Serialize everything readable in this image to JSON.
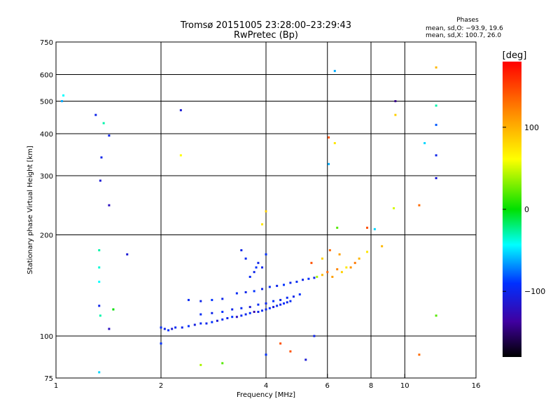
{
  "header": {
    "title": "Tromsø 20151005 23:28:00–23:29:43",
    "subtitle": "RwPretec (Bp)",
    "phases_label": "Phases",
    "phases_o": "mean, sd,O: −93.9, 19.6",
    "phases_x": "mean, sd,X: 100.7, 26.0"
  },
  "colorbar": {
    "unit": "[deg]",
    "ticks": [
      {
        "value": 100,
        "label": "100"
      },
      {
        "value": 0,
        "label": "0"
      },
      {
        "value": -100,
        "label": "−100"
      }
    ],
    "range": [
      -180,
      180
    ]
  },
  "chart_data": {
    "type": "scatter",
    "xlabel": "Frequency [MHz]",
    "ylabel": "Stationary phase Virtual Height [km]",
    "x_scale": "log",
    "y_scale": "log",
    "xlim": [
      1,
      16
    ],
    "ylim": [
      75,
      750
    ],
    "grid": true,
    "x_ticks": [
      {
        "value": 1,
        "label": "1"
      },
      {
        "value": 2,
        "label": "2"
      },
      {
        "value": 4,
        "label": "4"
      },
      {
        "value": 6,
        "label": "6"
      },
      {
        "value": 8,
        "label": "8"
      },
      {
        "value": 10,
        "label": "10"
      },
      {
        "value": 16,
        "label": "16"
      }
    ],
    "x_grid": [
      2,
      4,
      6,
      8,
      10
    ],
    "y_ticks": [
      {
        "value": 75,
        "label": "75"
      },
      {
        "value": 100,
        "label": "100"
      },
      {
        "value": 200,
        "label": "200"
      },
      {
        "value": 300,
        "label": "300"
      },
      {
        "value": 400,
        "label": "400"
      },
      {
        "value": 500,
        "label": "500"
      },
      {
        "value": 600,
        "label": "600"
      },
      {
        "value": 750,
        "label": "750"
      }
    ],
    "y_grid": [
      100,
      200,
      300,
      400,
      500,
      600
    ],
    "series": [
      {
        "points": [
          [
            2.0,
            106,
            -95
          ],
          [
            2.05,
            105,
            -100
          ],
          [
            2.1,
            104,
            -90
          ],
          [
            2.15,
            105,
            -110
          ],
          [
            2.2,
            106,
            -95
          ],
          [
            2.3,
            106,
            -100
          ],
          [
            2.4,
            107,
            -90
          ],
          [
            2.5,
            108,
            -105
          ],
          [
            2.6,
            109,
            -95
          ],
          [
            2.7,
            109,
            -100
          ],
          [
            2.8,
            110,
            -90
          ],
          [
            2.9,
            111,
            -110
          ],
          [
            3.0,
            112,
            -95
          ],
          [
            3.1,
            113,
            -100
          ],
          [
            3.2,
            114,
            -90
          ],
          [
            3.3,
            114,
            -120
          ],
          [
            3.4,
            115,
            -95
          ],
          [
            3.5,
            116,
            -100
          ],
          [
            3.6,
            117,
            -90
          ],
          [
            3.7,
            118,
            -130
          ],
          [
            3.8,
            118,
            -100
          ],
          [
            3.9,
            119,
            -95
          ],
          [
            4.0,
            120,
            -100
          ],
          [
            4.1,
            121,
            -90
          ],
          [
            4.2,
            122,
            -110
          ],
          [
            4.3,
            123,
            -95
          ],
          [
            4.4,
            124,
            -100
          ],
          [
            4.5,
            125,
            -90
          ],
          [
            4.6,
            126,
            -100
          ],
          [
            4.7,
            127,
            -95
          ],
          [
            2.6,
            116,
            -95
          ],
          [
            2.8,
            117,
            -100
          ],
          [
            3.0,
            118,
            -90
          ],
          [
            3.2,
            120,
            -100
          ],
          [
            3.4,
            121,
            -95
          ],
          [
            3.6,
            122,
            -110
          ],
          [
            3.8,
            124,
            -95
          ],
          [
            4.0,
            125,
            -100
          ],
          [
            4.2,
            127,
            -90
          ],
          [
            4.4,
            128,
            -100
          ],
          [
            4.6,
            130,
            -95
          ],
          [
            4.8,
            131,
            -100
          ],
          [
            5.0,
            133,
            -90
          ],
          [
            2.4,
            128,
            -95
          ],
          [
            2.6,
            127,
            -100
          ],
          [
            2.8,
            128,
            -90
          ],
          [
            3.0,
            129,
            -100
          ],
          [
            3.3,
            134,
            -95
          ],
          [
            3.5,
            135,
            -100
          ],
          [
            3.7,
            136,
            -90
          ],
          [
            3.9,
            138,
            -100
          ],
          [
            4.1,
            140,
            -95
          ],
          [
            4.3,
            141,
            -100
          ],
          [
            4.5,
            142,
            -90
          ],
          [
            4.7,
            144,
            -100
          ],
          [
            4.9,
            145,
            -95
          ],
          [
            5.1,
            147,
            -100
          ],
          [
            5.3,
            148,
            -90
          ],
          [
            5.5,
            149,
            -100
          ],
          [
            3.6,
            150,
            -95
          ],
          [
            3.7,
            155,
            -100
          ],
          [
            3.75,
            160,
            -90
          ],
          [
            3.8,
            165,
            -100
          ],
          [
            3.5,
            170,
            -95
          ],
          [
            3.4,
            180,
            -100
          ],
          [
            4.0,
            175,
            -90
          ],
          [
            3.9,
            160,
            -100
          ],
          [
            5.6,
            150,
            60
          ],
          [
            5.8,
            152,
            110
          ],
          [
            6.0,
            155,
            140
          ],
          [
            6.2,
            150,
            120
          ],
          [
            6.4,
            158,
            130
          ],
          [
            6.6,
            155,
            100
          ],
          [
            6.8,
            160,
            90
          ],
          [
            7.0,
            160,
            125
          ],
          [
            7.2,
            165,
            135
          ],
          [
            7.4,
            170,
            110
          ],
          [
            5.4,
            165,
            150
          ],
          [
            5.8,
            170,
            100
          ],
          [
            6.5,
            175,
            120
          ],
          [
            7.8,
            178,
            90
          ],
          [
            8.6,
            185,
            110
          ],
          [
            6.1,
            180,
            140
          ],
          [
            1.3,
            455,
            -100
          ],
          [
            1.37,
            430,
            -20
          ],
          [
            1.42,
            395,
            -100
          ],
          [
            1.35,
            340,
            -100
          ],
          [
            1.34,
            290,
            -110
          ],
          [
            1.42,
            245,
            -120
          ],
          [
            1.33,
            180,
            -20
          ],
          [
            1.33,
            160,
            -30
          ],
          [
            1.33,
            145,
            -40
          ],
          [
            1.33,
            123,
            -100
          ],
          [
            1.34,
            115,
            -20
          ],
          [
            1.46,
            120,
            20
          ],
          [
            1.42,
            105,
            -120
          ],
          [
            1.6,
            175,
            -110
          ],
          [
            1.05,
            520,
            -40
          ],
          [
            1.04,
            500,
            -60
          ],
          [
            2.28,
            470,
            -110
          ],
          [
            2.28,
            345,
            80
          ],
          [
            4.0,
            235,
            100
          ],
          [
            3.9,
            215,
            90
          ],
          [
            6.05,
            390,
            150
          ],
          [
            6.3,
            375,
            90
          ],
          [
            6.05,
            325,
            -60
          ],
          [
            6.3,
            615,
            -60
          ],
          [
            6.4,
            210,
            40
          ],
          [
            7.8,
            210,
            150
          ],
          [
            8.2,
            208,
            -50
          ],
          [
            9.4,
            500,
            -140
          ],
          [
            9.4,
            455,
            100
          ],
          [
            9.3,
            240,
            70
          ],
          [
            11.0,
            245,
            140
          ],
          [
            12.3,
            630,
            110
          ],
          [
            12.3,
            485,
            -20
          ],
          [
            12.3,
            425,
            -80
          ],
          [
            12.3,
            345,
            -100
          ],
          [
            12.3,
            295,
            -110
          ],
          [
            11.4,
            375,
            -50
          ],
          [
            12.3,
            115,
            40
          ],
          [
            11.0,
            88,
            140
          ],
          [
            5.2,
            85,
            -110
          ],
          [
            4.4,
            95,
            150
          ],
          [
            4.0,
            88,
            -90
          ],
          [
            3.0,
            83,
            40
          ],
          [
            1.33,
            78,
            -50
          ],
          [
            2.0,
            95,
            -90
          ],
          [
            2.6,
            82,
            60
          ],
          [
            5.5,
            100,
            -100
          ],
          [
            4.7,
            90,
            150
          ]
        ]
      }
    ]
  }
}
